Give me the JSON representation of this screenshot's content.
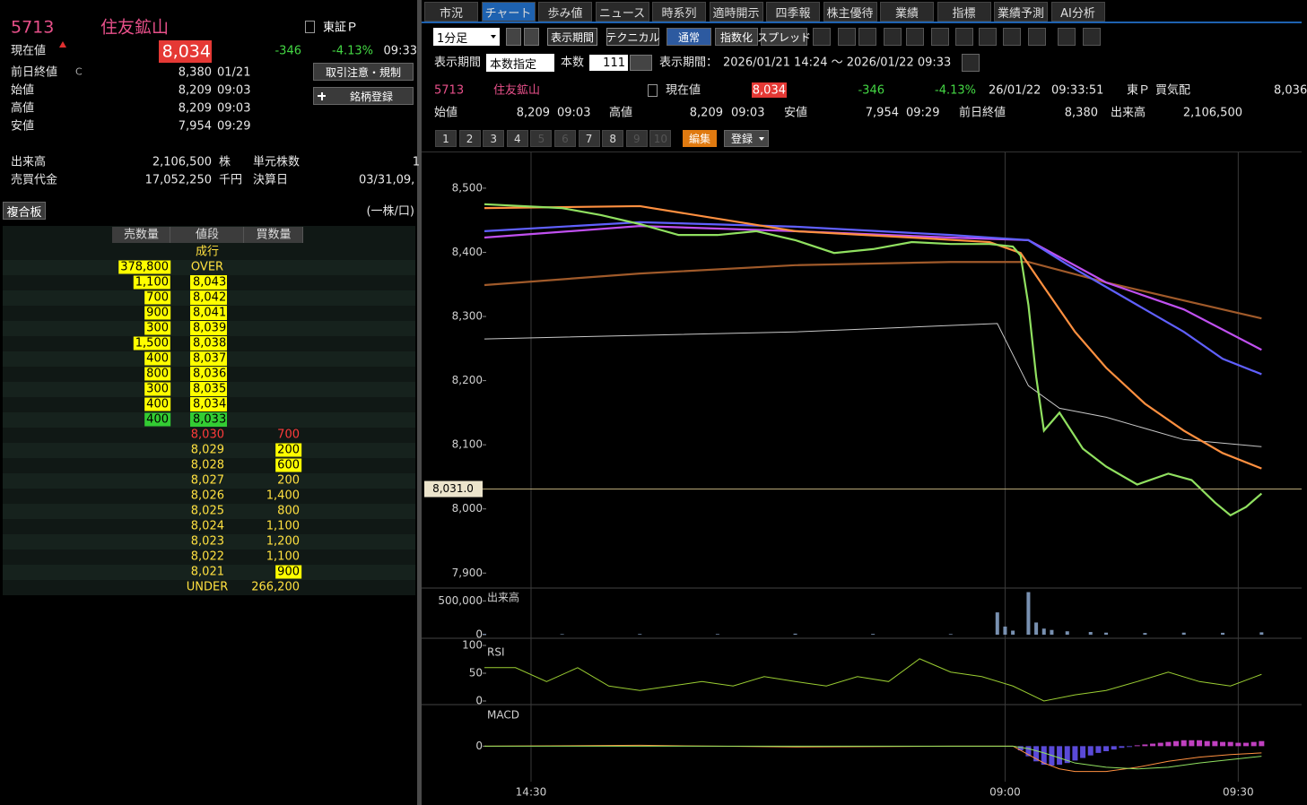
{
  "left": {
    "code": "5713",
    "name": "住友鉱山",
    "market": "東証Ｐ",
    "price_label": "現在値",
    "price": "8,034",
    "change": "-346",
    "change_pct": "-4.13%",
    "time": "09:33",
    "prev": {
      "label": "前日終値",
      "flag": "C",
      "value": "8,380",
      "time": "01/21"
    },
    "ohl": [
      {
        "label": "始値",
        "value": "8,209",
        "time": "09:03"
      },
      {
        "label": "高値",
        "value": "8,209",
        "time": "09:03"
      },
      {
        "label": "安値",
        "value": "7,954",
        "time": "09:29"
      }
    ],
    "buttons": [
      "取引注意・規制",
      "銘柄登録"
    ],
    "volume": {
      "label": "出来高",
      "value": "2,106,500",
      "unit": "株"
    },
    "unit_shares": {
      "label": "単元株数",
      "value": "1"
    },
    "turnover": {
      "label": "売買代金",
      "value": "17,052,250",
      "unit": "千円"
    },
    "fiscal": {
      "label": "決算日",
      "value": "03/31,09,"
    },
    "board_button": "複合板",
    "board_unit": "(一株/口)",
    "book": {
      "headers": [
        "売数量",
        "値段",
        "買数量"
      ],
      "market_order": "成行",
      "over": {
        "label": "OVER",
        "qty": "378,800",
        "color": "#ffff00"
      },
      "asks": [
        {
          "qty": "1,100",
          "price": "8,043",
          "color": "#ffff00"
        },
        {
          "qty": "700",
          "price": "8,042",
          "color": "#ffff00"
        },
        {
          "qty": "900",
          "price": "8,041",
          "color": "#ffff00"
        },
        {
          "qty": "300",
          "price": "8,039",
          "color": "#ffff00"
        },
        {
          "qty": "1,500",
          "price": "8,038",
          "color": "#ffff00"
        },
        {
          "qty": "400",
          "price": "8,037",
          "color": "#ffff00"
        },
        {
          "qty": "800",
          "price": "8,036",
          "color": "#ffff00"
        },
        {
          "qty": "300",
          "price": "8,035",
          "color": "#ffff00"
        },
        {
          "qty": "400",
          "price": "8,034",
          "color": "#ffff00"
        },
        {
          "qty": "400",
          "price": "8,033",
          "color": "#33cc33"
        }
      ],
      "bid_text_color": "#ffe040",
      "bids": [
        {
          "price": "8,030",
          "qty": "700",
          "text_color": "#ff3b3b"
        },
        {
          "price": "8,029",
          "qty": "200",
          "color": "#ffff00"
        },
        {
          "price": "8,028",
          "qty": "600",
          "color": "#ffff00"
        },
        {
          "price": "8,027",
          "qty": "200"
        },
        {
          "price": "8,026",
          "qty": "1,400"
        },
        {
          "price": "8,025",
          "qty": "800"
        },
        {
          "price": "8,024",
          "qty": "1,100"
        },
        {
          "price": "8,023",
          "qty": "1,200"
        },
        {
          "price": "8,022",
          "qty": "1,100"
        },
        {
          "price": "8,021",
          "qty": "900",
          "color": "#ffff00"
        }
      ],
      "under": {
        "label": "UNDER",
        "qty": "266,200"
      }
    }
  },
  "right": {
    "tabs": [
      "市況",
      "チャート",
      "歩み値",
      "ニュース",
      "時系列",
      "適時開示",
      "四季報",
      "株主優待",
      "業績",
      "指標",
      "業績予測",
      "AI分析"
    ],
    "active_tab": 1,
    "toolbar": {
      "interval": "1分足",
      "buttons": [
        "表示期間",
        "テクニカル"
      ],
      "modes": [
        "通常",
        "指数化",
        "スプレッド"
      ],
      "active_mode": 0,
      "period_label": "表示期間",
      "period_mode": "本数指定",
      "count_label": "本数",
      "count": "111",
      "range_label": "表示期間：",
      "range": "2026/01/21 14:24 ～ 2026/01/22 09:33"
    },
    "info": {
      "code": "5713",
      "name": "住友鉱山",
      "price_label": "現在値",
      "price": "8,034",
      "change": "-346",
      "change_pct": "-4.13%",
      "date": "26/01/22",
      "time": "09:33:51",
      "market": "東Ｐ",
      "quote_label": "買気配",
      "quote": "8,036",
      "row2": [
        {
          "label": "始値",
          "value": "8,209",
          "time": "09:03"
        },
        {
          "label": "高値",
          "value": "8,209",
          "time": "09:03"
        },
        {
          "label": "安値",
          "value": "7,954",
          "time": "09:29"
        },
        {
          "label": "前日終値",
          "value": "8,380"
        },
        {
          "label": "出来高",
          "value": "2,106,500"
        }
      ]
    },
    "pages": [
      "1",
      "2",
      "3",
      "4",
      "5",
      "6",
      "7",
      "8",
      "9",
      "10"
    ],
    "disabled_pages": [
      4,
      5,
      8,
      9
    ],
    "edit": "編集",
    "register": "登録"
  },
  "chart_data": [
    {
      "type": "line",
      "xlim": [
        0,
        101
      ],
      "ylim": [
        7878,
        8553
      ],
      "yticks": [
        {
          "value": 7900,
          "label": "7,900"
        },
        {
          "value": 8000,
          "label": "8,000"
        },
        {
          "value": 8100,
          "label": "8,100"
        },
        {
          "value": 8200,
          "label": "8,200"
        },
        {
          "value": 8300,
          "label": "8,300"
        },
        {
          "value": 8400,
          "label": "8,400"
        },
        {
          "value": 8500,
          "label": "8,500"
        }
      ],
      "xticks": [
        {
          "value": 6,
          "label": "14:30"
        },
        {
          "value": 67,
          "label": "09:00"
        },
        {
          "value": 97,
          "label": "09:30"
        }
      ],
      "price_line": {
        "value": 8031,
        "label": "8,031.0",
        "color": "#b8a878"
      },
      "series": [
        {
          "color": "#a05a2a",
          "x": [
            0,
            20,
            40,
            60,
            70,
            80,
            90,
            100
          ],
          "values": [
            8349,
            8367,
            8380,
            8385,
            8385,
            8353,
            8325,
            8297
          ]
        },
        {
          "color": "#c8c8c8",
          "width": 1,
          "x": [
            0,
            40,
            66,
            70,
            74,
            80,
            90,
            100
          ],
          "values": [
            8265,
            8276,
            8289,
            8192,
            8157,
            8143,
            8108,
            8097
          ]
        },
        {
          "color": "#c050f0",
          "x": [
            0,
            20,
            40,
            60,
            70,
            80,
            90,
            100
          ],
          "values": [
            8423,
            8441,
            8433,
            8423,
            8419,
            8353,
            8311,
            8248
          ]
        },
        {
          "color": "#6060ff",
          "x": [
            0,
            20,
            40,
            60,
            70,
            75,
            80,
            85,
            90,
            95,
            100
          ],
          "values": [
            8433,
            8447,
            8440,
            8427,
            8419,
            8381,
            8346,
            8311,
            8276,
            8234,
            8210
          ]
        },
        {
          "color": "#ff9040",
          "x": [
            0,
            20,
            40,
            55,
            65,
            69,
            72,
            76,
            80,
            85,
            90,
            95,
            100
          ],
          "values": [
            8469,
            8472,
            8433,
            8423,
            8416,
            8399,
            8346,
            8276,
            8220,
            8164,
            8122,
            8087,
            8063
          ]
        },
        {
          "color": "#90e060",
          "x": [
            0,
            10,
            15,
            20,
            25,
            30,
            35,
            40,
            45,
            50,
            55,
            60,
            65,
            68,
            69,
            70,
            71,
            72,
            74,
            77,
            80,
            84,
            88,
            91,
            94,
            96,
            98,
            100
          ],
          "values": [
            8475,
            8469,
            8458,
            8444,
            8427,
            8427,
            8433,
            8419,
            8399,
            8405,
            8416,
            8413,
            8413,
            8409,
            8395,
            8318,
            8206,
            8122,
            8150,
            8094,
            8066,
            8038,
            8055,
            8045,
            8010,
            7990,
            8003,
            8024
          ]
        }
      ]
    },
    {
      "type": "bar",
      "label": "出来高",
      "xlim": [
        0,
        101
      ],
      "ylim": [
        0,
        650000
      ],
      "yticks": [
        {
          "value": 500000,
          "label": "500,000"
        },
        0
      ],
      "color": "#7890b0",
      "x": [
        0,
        10,
        20,
        30,
        40,
        50,
        60,
        66,
        67,
        68,
        70,
        71,
        72,
        73,
        75,
        78,
        80,
        85,
        90,
        95,
        100
      ],
      "values": [
        12000,
        8000,
        10000,
        9000,
        15000,
        11000,
        9000,
        330000,
        120000,
        60000,
        630000,
        180000,
        90000,
        70000,
        50000,
        40000,
        30000,
        25000,
        30000,
        28000,
        35000
      ]
    },
    {
      "type": "line",
      "label": "RSI",
      "xlim": [
        0,
        101
      ],
      "ylim": [
        0,
        100
      ],
      "yticks": [
        100,
        50,
        0
      ],
      "series": [
        {
          "color": "#9acd32",
          "width": 1,
          "x": [
            0,
            4,
            8,
            12,
            16,
            20,
            24,
            28,
            32,
            36,
            40,
            44,
            48,
            52,
            56,
            60,
            64,
            68,
            72,
            76,
            80,
            84,
            88,
            92,
            96,
            100
          ],
          "values": [
            60,
            60,
            35,
            60,
            27,
            19,
            27,
            35,
            27,
            44,
            35,
            27,
            44,
            35,
            76,
            52,
            44,
            27,
            0,
            11,
            19,
            35,
            52,
            35,
            27,
            48
          ]
        }
      ]
    },
    {
      "type": "line",
      "label": "MACD",
      "xlim": [
        0,
        101
      ],
      "ylim": [
        -40,
        45
      ],
      "yticks": [
        0
      ],
      "histogram": {
        "color": "#5a4ad8",
        "positive_color": "#c040c0",
        "x": [
          69,
          70,
          71,
          72,
          73,
          74,
          75,
          76,
          77,
          78,
          79,
          80,
          81,
          82,
          83,
          84,
          85,
          86,
          87,
          88,
          89,
          90,
          91,
          92,
          93,
          94,
          95,
          96,
          97,
          98,
          99,
          100
        ],
        "values": [
          -5,
          -12,
          -18,
          -22,
          -23,
          -22,
          -20,
          -17,
          -14,
          -11,
          -8,
          -6,
          -4,
          -2,
          -1,
          1,
          2,
          3,
          4,
          5,
          6,
          7,
          7,
          7,
          6,
          6,
          5,
          5,
          4,
          4,
          5,
          6
        ]
      },
      "series": [
        {
          "color": "#ff9040",
          "width": 1,
          "x": [
            0,
            20,
            40,
            60,
            68,
            70,
            72,
            74,
            76,
            80,
            84,
            88,
            92,
            96,
            100
          ],
          "values": [
            0,
            1,
            -1,
            0,
            0,
            -10,
            -20,
            -27,
            -30,
            -30,
            -25,
            -18,
            -13,
            -10,
            -8
          ]
        },
        {
          "color": "#90e060",
          "width": 1,
          "x": [
            0,
            20,
            40,
            60,
            68,
            70,
            72,
            74,
            76,
            80,
            84,
            88,
            92,
            96,
            100
          ],
          "values": [
            0,
            0,
            0,
            0,
            0,
            -3,
            -8,
            -14,
            -20,
            -25,
            -27,
            -25,
            -20,
            -16,
            -12
          ]
        }
      ]
    }
  ]
}
